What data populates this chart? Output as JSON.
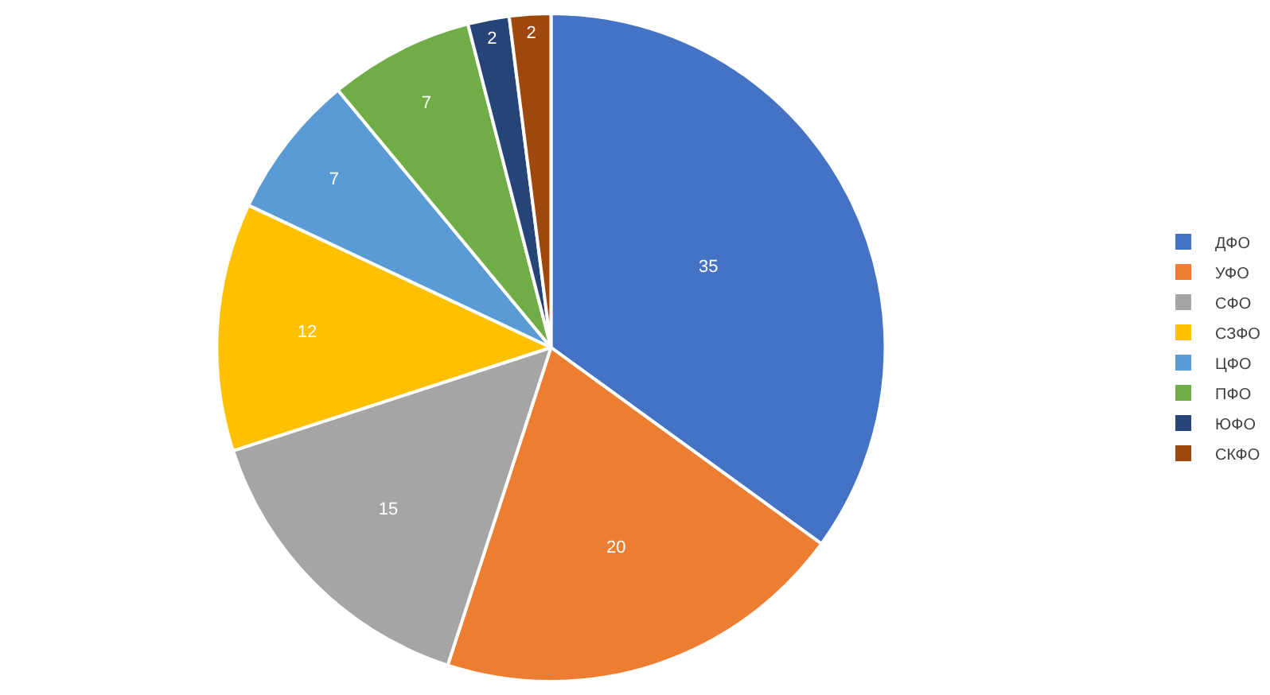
{
  "chart_data": {
    "type": "pie",
    "categories": [
      "ДФО",
      "УФО",
      "СФО",
      "СЗФО",
      "ЦФО",
      "ПФО",
      "ЮФО",
      "СКФО"
    ],
    "values": [
      35,
      20,
      15,
      12,
      7,
      7,
      2,
      2
    ],
    "colors": [
      "#4472c4",
      "#ed7d31",
      "#a5a5a5",
      "#ffc000",
      "#5b9bd5",
      "#70ad47",
      "#264478",
      "#9e480e"
    ],
    "data_labels": true,
    "legend": "right"
  }
}
